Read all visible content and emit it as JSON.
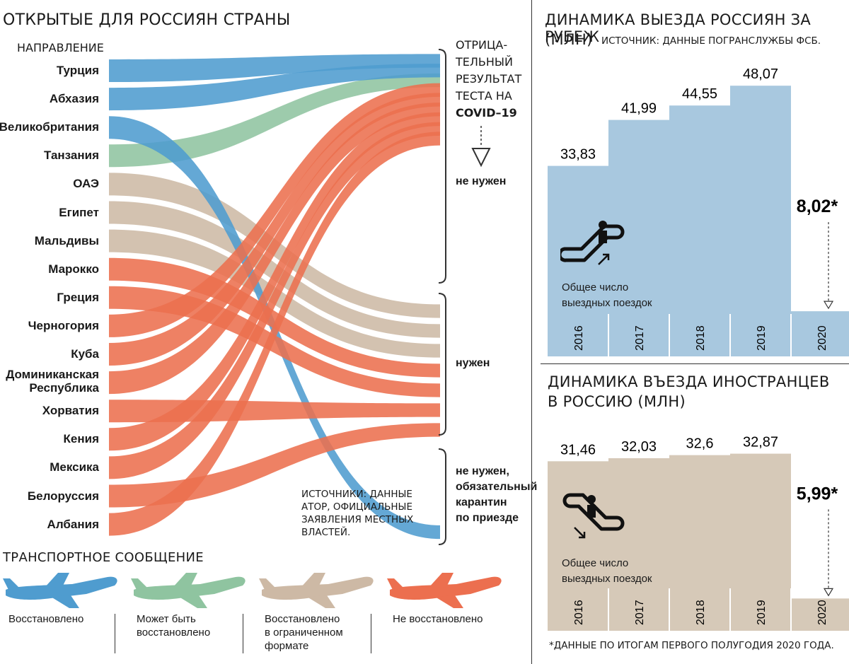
{
  "left": {
    "title": "ОТКРЫТЫЕ ДЛЯ РОССИЯН СТРАНЫ",
    "direction_label": "НАПРАВЛЕНИЕ",
    "countries": [
      {
        "name": "Турция",
        "transport": "restored",
        "test": "not_needed"
      },
      {
        "name": "Абхазия",
        "transport": "restored",
        "test": "not_needed"
      },
      {
        "name": "Великобритания",
        "transport": "restored",
        "test": "quarantine"
      },
      {
        "name": "Танзания",
        "transport": "maybe",
        "test": "not_needed"
      },
      {
        "name": "ОАЭ",
        "transport": "limited",
        "test": "needed"
      },
      {
        "name": "Египет",
        "transport": "limited",
        "test": "needed"
      },
      {
        "name": "Мальдивы",
        "transport": "limited",
        "test": "needed"
      },
      {
        "name": "Марокко",
        "transport": "not_restored",
        "test": "needed"
      },
      {
        "name": "Греция",
        "transport": "not_restored",
        "test": "needed"
      },
      {
        "name": "Черногория",
        "transport": "not_restored",
        "test": "not_needed"
      },
      {
        "name": "Куба",
        "transport": "not_restored",
        "test": "not_needed"
      },
      {
        "name": "Доминиканская Республика",
        "transport": "not_restored",
        "test": "not_needed"
      },
      {
        "name": "Хорватия",
        "transport": "not_restored",
        "test": "needed"
      },
      {
        "name": "Кения",
        "transport": "not_restored",
        "test": "not_needed"
      },
      {
        "name": "Мексика",
        "transport": "not_restored",
        "test": "not_needed"
      },
      {
        "name": "Белоруссия",
        "transport": "not_restored",
        "test": "needed"
      },
      {
        "name": "Албания",
        "transport": "not_restored",
        "test": "not_needed"
      }
    ],
    "test_header": "ОТРИЦА-ТЕЛЬНЫЙ РЕЗУЛЬТАТ ТЕСТА НА",
    "test_header_lines": [
      "ОТРИЦА-",
      "ТЕЛЬНЫЙ",
      "РЕЗУЛЬТАТ",
      "ТЕСТА НА"
    ],
    "test_header_bold": "COVID–19",
    "group_not_needed": "не нужен",
    "group_needed": "нужен",
    "group_quarantine": "не нужен, обязательный карантин по приезде",
    "group_quarantine_lines": [
      "не нужен,",
      "обязательный",
      "карантин",
      "по приезде"
    ],
    "sources": "ИСТОЧНИКИ: ДАННЫЕ АТОР, ОФИЦИАЛЬНЫЕ ЗАЯВЛЕНИЯ МЕСТНЫХ ВЛАСТЕЙ.",
    "sources_lines": [
      "ИСТОЧНИКИ: ДАННЫЕ",
      "АТОР, ОФИЦИАЛЬНЫЕ",
      "ЗАЯВЛЕНИЯ МЕСТНЫХ",
      "ВЛАСТЕЙ."
    ],
    "transport_title": "ТРАНСПОРТНОЕ СООБЩЕНИЕ",
    "legend": [
      {
        "key": "restored",
        "label": "Восстановлено",
        "lines": [
          "Восстановлено"
        ],
        "color": "#4f9ccf"
      },
      {
        "key": "maybe",
        "label": "Может быть восстановлено",
        "lines": [
          "Может быть",
          "восстановлено"
        ],
        "color": "#8fc4a0"
      },
      {
        "key": "limited",
        "label": "Восстановлено в ограниченном формате",
        "lines": [
          "Восстановлено",
          "в ограниченном",
          "формате"
        ],
        "color": "#cdb9a5"
      },
      {
        "key": "not_restored",
        "label": "Не восстановлено",
        "lines": [
          "Не восстановлено"
        ],
        "color": "#ec6f4f"
      }
    ]
  },
  "colors": {
    "restored": "#4f9ccf",
    "maybe": "#8fc4a0",
    "limited": "#cdb9a5",
    "not_restored": "#ec6f4f",
    "outbound_bar": "#a8c8df",
    "inbound_bar": "#d6c9b8"
  },
  "outbound": {
    "title_line1": "ДИНАМИКА ВЫЕЗДА РОССИЯН ЗА РУБЕЖ",
    "title_line2": "(МЛН)",
    "source": "ИСТОЧНИК: ДАННЫЕ ПОГРАНСЛУЖБЫ ФСБ.",
    "caption": "Общее число выездных поездок",
    "caption_lines": [
      "Общее число",
      "выездных поездок"
    ],
    "icon": "escalator-up-icon"
  },
  "inbound": {
    "title_line1": "ДИНАМИКА ВЪЕЗДА ИНОСТРАНЦЕВ",
    "title_line2": "В РОССИЮ (МЛН)",
    "caption": "Общее число выездных поездок",
    "caption_lines": [
      "Общее число",
      "выездных поездок"
    ],
    "icon": "escalator-down-icon"
  },
  "footnote": "*ДАННЫЕ ПО ИТОГАМ ПЕРВОГО ПОЛУГОДИЯ 2020 ГОДА.",
  "chart_data": [
    {
      "type": "bar",
      "title": "ДИНАМИКА ВЫЕЗДА РОССИЯН ЗА РУБЕЖ (МЛН)",
      "categories": [
        "2016",
        "2017",
        "2018",
        "2019",
        "2020"
      ],
      "values": [
        33.83,
        41.99,
        44.55,
        48.07,
        8.02
      ],
      "value_labels": [
        "33,83",
        "41,99",
        "44,55",
        "48,07",
        "8,02*"
      ],
      "ylim": [
        0,
        55
      ]
    },
    {
      "type": "bar",
      "title": "ДИНАМИКА ВЪЕЗДА ИНОСТРАНЦЕВ В РОССИЮ (МЛН)",
      "categories": [
        "2016",
        "2017",
        "2018",
        "2019",
        "2020"
      ],
      "values": [
        31.46,
        32.03,
        32.6,
        32.87,
        5.99
      ],
      "value_labels": [
        "31,46",
        "32,03",
        "32,6",
        "32,87",
        "5,99*"
      ],
      "ylim": [
        0,
        42
      ]
    }
  ]
}
